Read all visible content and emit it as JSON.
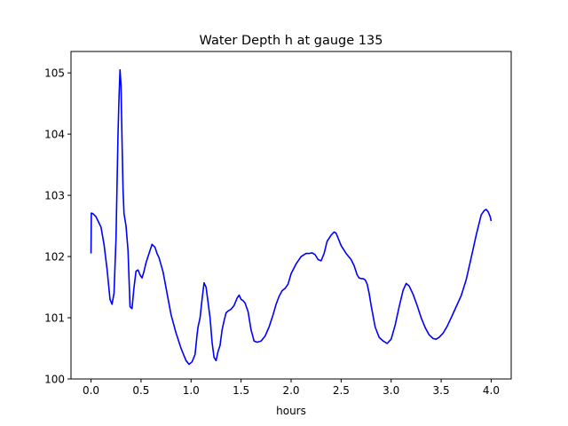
{
  "chart_data": {
    "type": "line",
    "title": "Water Depth h at gauge 135",
    "xlabel": "hours",
    "ylabel": "",
    "xlim": [
      -0.2,
      4.2
    ],
    "ylim": [
      100,
      105.35
    ],
    "xticks": [
      0.0,
      0.5,
      1.0,
      1.5,
      2.0,
      2.5,
      3.0,
      3.5,
      4.0
    ],
    "xtick_labels": [
      "0.0",
      "0.5",
      "1.0",
      "1.5",
      "2.0",
      "2.5",
      "3.0",
      "3.5",
      "4.0"
    ],
    "yticks": [
      100,
      101,
      102,
      103,
      104,
      105
    ],
    "ytick_labels": [
      "100",
      "101",
      "102",
      "103",
      "104",
      "105"
    ],
    "grid": false,
    "series": [
      {
        "color": "#0000ff",
        "x": [
          0.0,
          0.003,
          0.02,
          0.05,
          0.1,
          0.13,
          0.16,
          0.19,
          0.21,
          0.23,
          0.25,
          0.27,
          0.28,
          0.29,
          0.3,
          0.31,
          0.32,
          0.33,
          0.35,
          0.37,
          0.39,
          0.41,
          0.43,
          0.45,
          0.47,
          0.49,
          0.51,
          0.53,
          0.55,
          0.58,
          0.61,
          0.64,
          0.66,
          0.68,
          0.72,
          0.76,
          0.8,
          0.85,
          0.9,
          0.95,
          0.98,
          1.01,
          1.04,
          1.06,
          1.07,
          1.09,
          1.11,
          1.13,
          1.15,
          1.17,
          1.19,
          1.21,
          1.23,
          1.25,
          1.27,
          1.29,
          1.31,
          1.33,
          1.35,
          1.37,
          1.4,
          1.43,
          1.46,
          1.48,
          1.5,
          1.52,
          1.54,
          1.57,
          1.6,
          1.63,
          1.66,
          1.7,
          1.74,
          1.78,
          1.82,
          1.85,
          1.88,
          1.91,
          1.94,
          1.97,
          2.0,
          2.05,
          2.1,
          2.15,
          2.18,
          2.21,
          2.24,
          2.27,
          2.3,
          2.33,
          2.36,
          2.4,
          2.43,
          2.45,
          2.47,
          2.5,
          2.55,
          2.6,
          2.63,
          2.66,
          2.68,
          2.7,
          2.72,
          2.74,
          2.76,
          2.78,
          2.8,
          2.84,
          2.88,
          2.92,
          2.96,
          3.0,
          3.04,
          3.08,
          3.12,
          3.15,
          3.18,
          3.22,
          3.26,
          3.3,
          3.34,
          3.38,
          3.42,
          3.45,
          3.48,
          3.52,
          3.56,
          3.6,
          3.65,
          3.7,
          3.75,
          3.8,
          3.85,
          3.9,
          3.93,
          3.95,
          3.97,
          3.99,
          4.0
        ],
        "y": [
          102.05,
          102.71,
          102.7,
          102.65,
          102.48,
          102.2,
          101.8,
          101.3,
          101.22,
          101.4,
          102.3,
          104.0,
          104.6,
          105.05,
          104.8,
          103.9,
          103.1,
          102.7,
          102.5,
          102.1,
          101.18,
          101.15,
          101.5,
          101.76,
          101.78,
          101.7,
          101.65,
          101.76,
          101.9,
          102.05,
          102.2,
          102.15,
          102.05,
          101.98,
          101.75,
          101.4,
          101.05,
          100.75,
          100.5,
          100.3,
          100.24,
          100.28,
          100.4,
          100.72,
          100.85,
          101.0,
          101.3,
          101.57,
          101.5,
          101.25,
          101.0,
          100.6,
          100.35,
          100.3,
          100.45,
          100.55,
          100.8,
          100.95,
          101.08,
          101.11,
          101.14,
          101.2,
          101.32,
          101.37,
          101.3,
          101.28,
          101.24,
          101.1,
          100.8,
          100.62,
          100.6,
          100.62,
          100.7,
          100.85,
          101.05,
          101.22,
          101.35,
          101.44,
          101.48,
          101.55,
          101.72,
          101.88,
          102.0,
          102.05,
          102.05,
          102.06,
          102.03,
          101.95,
          101.93,
          102.05,
          102.25,
          102.35,
          102.4,
          102.38,
          102.3,
          102.18,
          102.05,
          101.95,
          101.85,
          101.7,
          101.65,
          101.64,
          101.64,
          101.62,
          101.55,
          101.4,
          101.2,
          100.85,
          100.68,
          100.62,
          100.58,
          100.65,
          100.88,
          101.18,
          101.45,
          101.56,
          101.52,
          101.38,
          101.2,
          101.0,
          100.84,
          100.72,
          100.66,
          100.65,
          100.68,
          100.75,
          100.86,
          101.0,
          101.18,
          101.36,
          101.62,
          101.98,
          102.35,
          102.68,
          102.75,
          102.77,
          102.73,
          102.65,
          102.58
        ]
      }
    ]
  }
}
